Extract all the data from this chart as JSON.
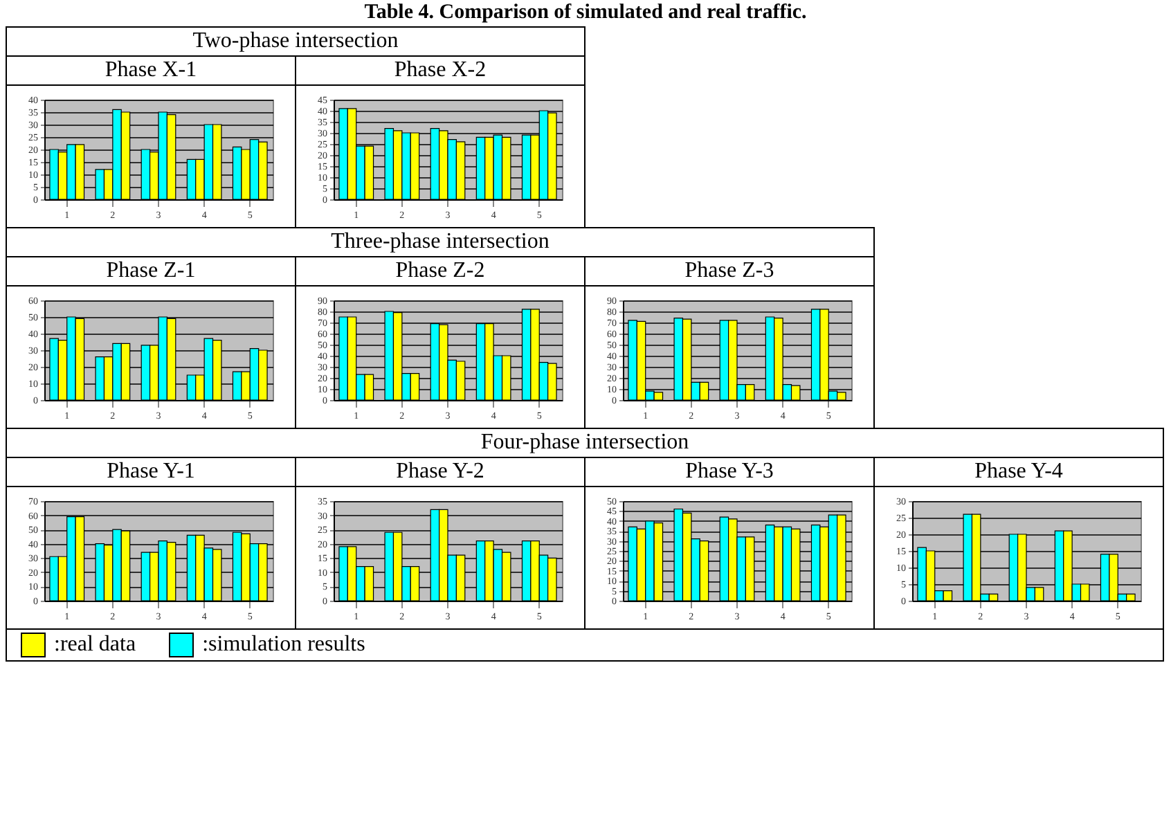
{
  "chart_data": [
    {
      "type": "bar",
      "title": "Phase X-1",
      "annotations": [
        "Table 4. Comparison of simulated and real traffic.",
        "Two-phase intersection"
      ],
      "categories": [
        "1",
        "2",
        "3",
        "4",
        "5"
      ],
      "ylim": [
        0,
        40
      ],
      "yticks": [
        0,
        5,
        10,
        15,
        20,
        25,
        30,
        35,
        40
      ],
      "grid": "y",
      "series": [
        {
          "color": "#00ffff",
          "values": [
            20,
            12,
            20,
            16,
            21
          ]
        },
        {
          "color": "#ffff00",
          "values": [
            19,
            12,
            19,
            16,
            20
          ]
        },
        {
          "color": "#00ffff",
          "values": [
            22,
            36,
            35,
            30,
            24
          ]
        },
        {
          "color": "#ffff00",
          "values": [
            22,
            35,
            34,
            30,
            23
          ]
        }
      ]
    },
    {
      "type": "bar",
      "title": "Phase X-2",
      "categories": [
        "1",
        "2",
        "3",
        "4",
        "5"
      ],
      "ylim": [
        0,
        45
      ],
      "yticks": [
        0,
        5,
        10,
        15,
        20,
        25,
        30,
        35,
        40,
        45
      ],
      "grid": "y",
      "series": [
        {
          "color": "#00ffff",
          "values": [
            41,
            32,
            32,
            28,
            29
          ]
        },
        {
          "color": "#ffff00",
          "values": [
            41,
            31,
            31,
            28,
            29
          ]
        },
        {
          "color": "#00ffff",
          "values": [
            24,
            30,
            27,
            29,
            40
          ]
        },
        {
          "color": "#ffff00",
          "values": [
            24,
            30,
            26,
            28,
            39
          ]
        }
      ]
    },
    {
      "type": "bar",
      "title": "Phase Z-1",
      "annotations": [
        "Three-phase intersection"
      ],
      "categories": [
        "1",
        "2",
        "3",
        "4",
        "5"
      ],
      "ylim": [
        0,
        60
      ],
      "yticks": [
        0,
        10,
        20,
        30,
        40,
        50,
        60
      ],
      "grid": "y",
      "series": [
        {
          "color": "#00ffff",
          "values": [
            37,
            26,
            33,
            15,
            17
          ]
        },
        {
          "color": "#ffff00",
          "values": [
            36,
            26,
            33,
            15,
            17
          ]
        },
        {
          "color": "#00ffff",
          "values": [
            50,
            34,
            50,
            37,
            31
          ]
        },
        {
          "color": "#ffff00",
          "values": [
            49,
            34,
            49,
            36,
            30
          ]
        }
      ]
    },
    {
      "type": "bar",
      "title": "Phase Z-2",
      "categories": [
        "1",
        "2",
        "3",
        "4",
        "5"
      ],
      "ylim": [
        0,
        90
      ],
      "yticks": [
        0,
        10,
        20,
        30,
        40,
        50,
        60,
        70,
        80,
        90
      ],
      "grid": "y",
      "series": [
        {
          "color": "#00ffff",
          "values": [
            75,
            80,
            69,
            69,
            82
          ]
        },
        {
          "color": "#ffff00",
          "values": [
            75,
            79,
            68,
            69,
            82
          ]
        },
        {
          "color": "#00ffff",
          "values": [
            23,
            24,
            36,
            40,
            34
          ]
        },
        {
          "color": "#ffff00",
          "values": [
            23,
            24,
            35,
            40,
            33
          ]
        }
      ]
    },
    {
      "type": "bar",
      "title": "Phase Z-3",
      "categories": [
        "1",
        "2",
        "3",
        "4",
        "5"
      ],
      "ylim": [
        0,
        90
      ],
      "yticks": [
        0,
        10,
        20,
        30,
        40,
        50,
        60,
        70,
        80,
        90
      ],
      "grid": "y",
      "series": [
        {
          "color": "#00ffff",
          "values": [
            72,
            74,
            72,
            75,
            82
          ]
        },
        {
          "color": "#ffff00",
          "values": [
            71,
            73,
            72,
            74,
            82
          ]
        },
        {
          "color": "#00ffff",
          "values": [
            8,
            16,
            14,
            14,
            8
          ]
        },
        {
          "color": "#ffff00",
          "values": [
            7,
            16,
            14,
            13,
            7
          ]
        }
      ]
    },
    {
      "type": "bar",
      "title": "Phase Y-1",
      "annotations": [
        "Four-phase intersection"
      ],
      "categories": [
        "1",
        "2",
        "3",
        "4",
        "5"
      ],
      "ylim": [
        0,
        70
      ],
      "yticks": [
        0,
        10,
        20,
        30,
        40,
        50,
        60,
        70
      ],
      "grid": "y",
      "series": [
        {
          "color": "#00ffff",
          "values": [
            31,
            40,
            34,
            46,
            48
          ]
        },
        {
          "color": "#ffff00",
          "values": [
            31,
            39,
            34,
            46,
            47
          ]
        },
        {
          "color": "#00ffff",
          "values": [
            59,
            50,
            42,
            37,
            40
          ]
        },
        {
          "color": "#ffff00",
          "values": [
            59,
            49,
            41,
            36,
            40
          ]
        }
      ]
    },
    {
      "type": "bar",
      "title": "Phase Y-2",
      "categories": [
        "1",
        "2",
        "3",
        "4",
        "5"
      ],
      "ylim": [
        0,
        35
      ],
      "yticks": [
        0,
        5,
        10,
        15,
        20,
        25,
        30,
        35
      ],
      "grid": "y",
      "series": [
        {
          "color": "#00ffff",
          "values": [
            19,
            24,
            32,
            21,
            21
          ]
        },
        {
          "color": "#ffff00",
          "values": [
            19,
            24,
            32,
            21,
            21
          ]
        },
        {
          "color": "#00ffff",
          "values": [
            12,
            12,
            16,
            18,
            16
          ]
        },
        {
          "color": "#ffff00",
          "values": [
            12,
            12,
            16,
            17,
            15
          ]
        }
      ]
    },
    {
      "type": "bar",
      "title": "Phase Y-3",
      "categories": [
        "1",
        "2",
        "3",
        "4",
        "5"
      ],
      "ylim": [
        0,
        50
      ],
      "yticks": [
        0,
        5,
        10,
        15,
        20,
        25,
        30,
        35,
        40,
        45,
        50
      ],
      "grid": "y",
      "series": [
        {
          "color": "#00ffff",
          "values": [
            37,
            46,
            42,
            38,
            38
          ]
        },
        {
          "color": "#ffff00",
          "values": [
            36,
            44,
            41,
            37,
            37
          ]
        },
        {
          "color": "#00ffff",
          "values": [
            40,
            31,
            32,
            37,
            43
          ]
        },
        {
          "color": "#ffff00",
          "values": [
            39,
            30,
            32,
            36,
            43
          ]
        }
      ]
    },
    {
      "type": "bar",
      "title": "Phase Y-4",
      "categories": [
        "1",
        "2",
        "3",
        "4",
        "5"
      ],
      "ylim": [
        0,
        30
      ],
      "yticks": [
        0,
        5,
        10,
        15,
        20,
        25,
        30
      ],
      "grid": "y",
      "legend": "bottom",
      "series": [
        {
          "color": "#00ffff",
          "values": [
            16,
            26,
            20,
            21,
            14
          ]
        },
        {
          "name": ":real data",
          "color": "#ffff00",
          "values": [
            15,
            26,
            20,
            21,
            14
          ]
        },
        {
          "name": ":simulation results",
          "color": "#00ffff",
          "values": [
            3,
            2,
            4,
            5,
            2
          ]
        },
        {
          "color": "#ffff00",
          "values": [
            3,
            2,
            4,
            5,
            2
          ]
        }
      ]
    }
  ]
}
